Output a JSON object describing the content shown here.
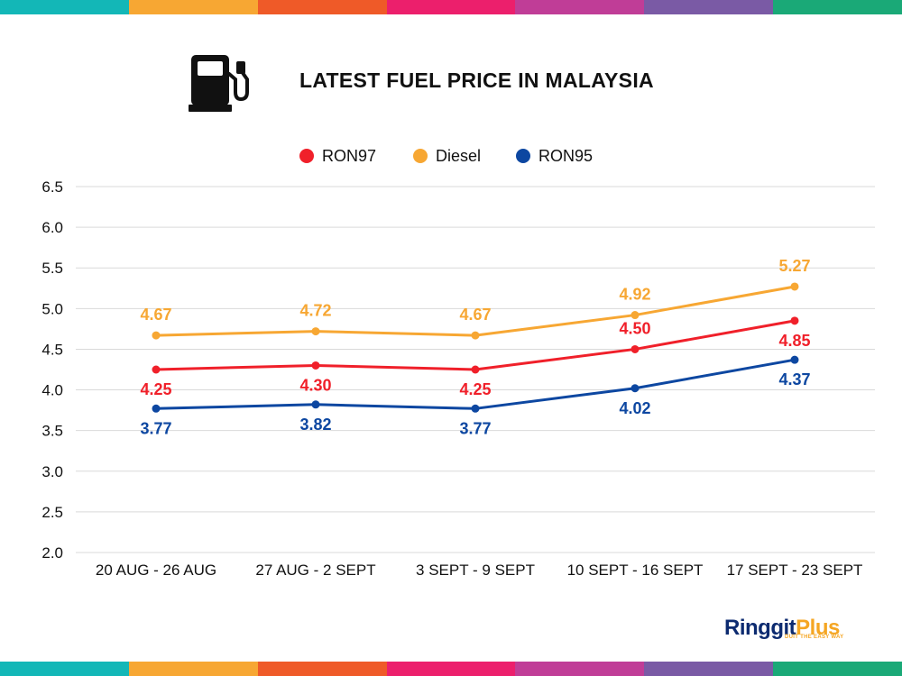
{
  "stripe_colors": [
    "#13b7b7",
    "#f7a733",
    "#ef5a28",
    "#ec1f6c",
    "#c03d97",
    "#7a5aa5",
    "#1aa977"
  ],
  "header": {
    "title": "LATEST FUEL PRICE IN MALAYSIA",
    "icon": "fuel-pump-icon"
  },
  "logo": {
    "part1": "Ringgit",
    "part2": "Plus",
    "tagline": "DUIT THE EASY WAY"
  },
  "chart_data": {
    "type": "line",
    "categories": [
      "20 AUG - 26 AUG",
      "27 AUG - 2 SEPT",
      "3 SEPT - 9 SEPT",
      "10 SEPT - 16 SEPT",
      "17 SEPT - 23 SEPT"
    ],
    "series": [
      {
        "name": "RON97",
        "color": "#f0202a",
        "values": [
          4.25,
          4.3,
          4.25,
          4.5,
          4.85
        ],
        "labels": [
          "4.25",
          "4.30",
          "4.25",
          "4.50",
          "4.85"
        ]
      },
      {
        "name": "Diesel",
        "color": "#f7a733",
        "values": [
          4.67,
          4.72,
          4.67,
          4.92,
          5.27
        ],
        "labels": [
          "4.67",
          "4.72",
          "4.67",
          "4.92",
          "5.27"
        ]
      },
      {
        "name": "RON95",
        "color": "#0d47a1",
        "values": [
          3.77,
          3.82,
          3.77,
          4.02,
          4.37
        ],
        "labels": [
          "3.77",
          "3.82",
          "3.77",
          "4.02",
          "4.37"
        ]
      }
    ],
    "ylim": [
      2.0,
      6.5
    ],
    "yticks": [
      "2.0",
      "2.5",
      "3.0",
      "3.5",
      "4.0",
      "4.5",
      "5.0",
      "5.5",
      "6.0",
      "6.5"
    ],
    "grid": true,
    "legend": "top-center"
  }
}
